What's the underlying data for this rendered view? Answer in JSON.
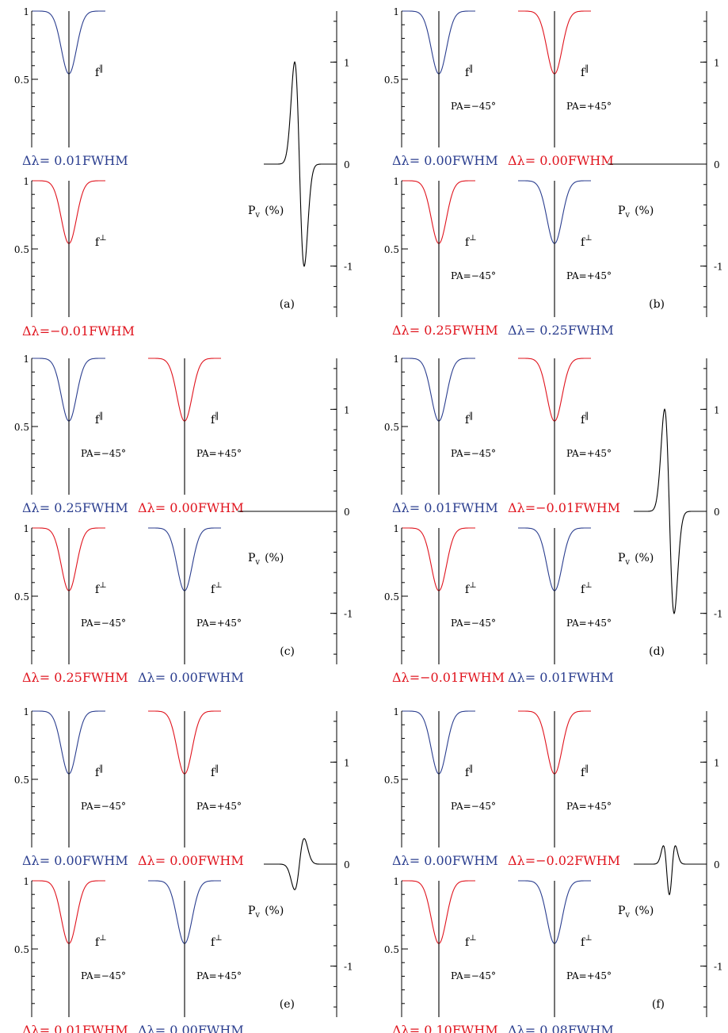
{
  "colors": {
    "blue": "#2b3e8f",
    "red": "#e0141e",
    "black": "#000000"
  },
  "labels": {
    "f_par": "f",
    "f_par_sup": "‖",
    "f_perp": "f",
    "f_perp_sup": "⊥",
    "pv": "P",
    "pv_sub": "v",
    "pv_unit": "(%)"
  },
  "chart_data": {
    "type": "line",
    "description_axes": {
      "profile_yticks": [
        "1",
        "0.5"
      ],
      "pv_yticks": [
        "1",
        "0",
        "-1"
      ],
      "pv_ylim": [
        -1.5,
        1.5
      ],
      "profile_ylim": [
        0,
        1
      ]
    },
    "panels": [
      {
        "id": "a",
        "label": "(a)",
        "top": {
          "profiles": [
            {
              "color": "blue",
              "pa": "",
              "dl": "Δλ=  0.01FWHM"
            }
          ]
        },
        "bottom": {
          "profiles": [
            {
              "color": "red",
              "pa": "",
              "dl": "Δλ=−0.01FWHM"
            }
          ]
        },
        "pv": {
          "amplitude": 1.0,
          "shape": "antisym"
        }
      },
      {
        "id": "b",
        "label": "(b)",
        "top": {
          "profiles": [
            {
              "color": "blue",
              "pa": "PA=−45°",
              "dl": "Δλ=  0.00FWHM"
            },
            {
              "color": "red",
              "pa": "PA=+45°",
              "dl": "Δλ=  0.00FWHM"
            }
          ]
        },
        "bottom": {
          "profiles": [
            {
              "color": "red",
              "pa": "PA=−45°",
              "dl": "Δλ=  0.25FWHM"
            },
            {
              "color": "blue",
              "pa": "PA=+45°",
              "dl": "Δλ=  0.25FWHM"
            }
          ]
        },
        "pv": {
          "amplitude": 0.0,
          "shape": "flat"
        }
      },
      {
        "id": "c",
        "label": "(c)",
        "top": {
          "profiles": [
            {
              "color": "blue",
              "pa": "PA=−45°",
              "dl": "Δλ=  0.25FWHM"
            },
            {
              "color": "red",
              "pa": "PA=+45°",
              "dl": "Δλ=  0.00FWHM"
            }
          ]
        },
        "bottom": {
          "profiles": [
            {
              "color": "red",
              "pa": "PA=−45°",
              "dl": "Δλ=  0.25FWHM"
            },
            {
              "color": "blue",
              "pa": "PA=+45°",
              "dl": "Δλ=  0.00FWHM"
            }
          ]
        },
        "pv": {
          "amplitude": 0.0,
          "shape": "flat"
        }
      },
      {
        "id": "d",
        "label": "(d)",
        "top": {
          "profiles": [
            {
              "color": "blue",
              "pa": "PA=−45°",
              "dl": "Δλ=  0.01FWHM"
            },
            {
              "color": "red",
              "pa": "PA=+45°",
              "dl": "Δλ=−0.01FWHM"
            }
          ]
        },
        "bottom": {
          "profiles": [
            {
              "color": "red",
              "pa": "PA=−45°",
              "dl": "Δλ=−0.01FWHM"
            },
            {
              "color": "blue",
              "pa": "PA=+45°",
              "dl": "Δλ=  0.01FWHM"
            }
          ]
        },
        "pv": {
          "amplitude": 1.0,
          "shape": "antisym"
        }
      },
      {
        "id": "e",
        "label": "(e)",
        "top": {
          "profiles": [
            {
              "color": "blue",
              "pa": "PA=−45°",
              "dl": "Δλ=  0.00FWHM"
            },
            {
              "color": "red",
              "pa": "PA=+45°",
              "dl": "Δλ=  0.00FWHM"
            }
          ]
        },
        "bottom": {
          "profiles": [
            {
              "color": "red",
              "pa": "PA=−45°",
              "dl": "Δλ=  0.01FWHM"
            },
            {
              "color": "blue",
              "pa": "PA=+45°",
              "dl": "Δλ=  0.00FWHM"
            }
          ]
        },
        "pv": {
          "amplitude": 0.25,
          "shape": "antisym_neg"
        }
      },
      {
        "id": "f",
        "label": "(f)",
        "top": {
          "profiles": [
            {
              "color": "blue",
              "pa": "PA=−45°",
              "dl": "Δλ=  0.00FWHM"
            },
            {
              "color": "red",
              "pa": "PA=+45°",
              "dl": "Δλ=−0.02FWHM"
            }
          ]
        },
        "bottom": {
          "profiles": [
            {
              "color": "red",
              "pa": "PA=−45°",
              "dl": "Δλ=  0.10FWHM"
            },
            {
              "color": "blue",
              "pa": "PA=+45°",
              "dl": "Δλ=  0.08FWHM"
            }
          ]
        },
        "pv": {
          "amplitude": 0.23,
          "shape": "sym_dip"
        }
      }
    ]
  }
}
